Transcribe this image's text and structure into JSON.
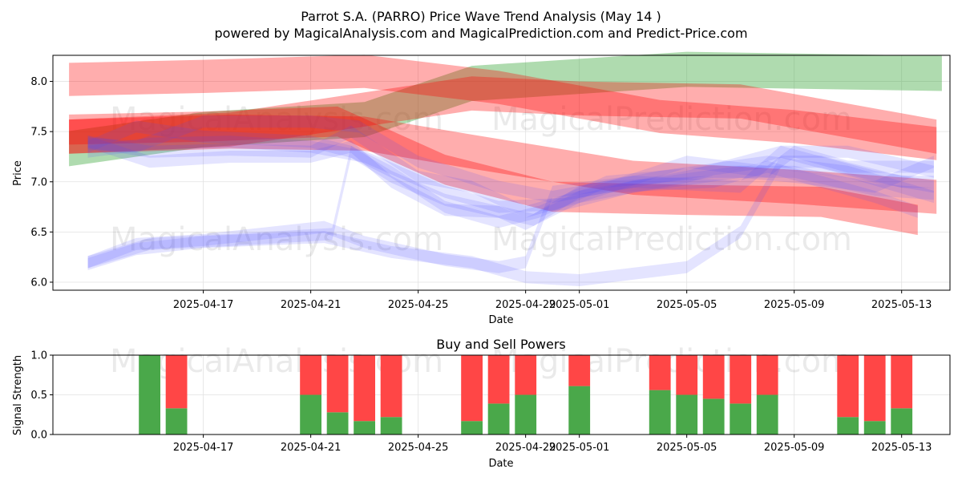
{
  "title": "Parrot S.A. (PARRO) Price Wave Trend Analysis (May 14 )",
  "subtitle": "powered by MagicalAnalysis.com and MagicalPrediction.com and Predict-Price.com",
  "watermarks": [
    "MagicalAnalysis.com",
    "MagicalPrediction.com"
  ],
  "chart_data": [
    {
      "type": "area",
      "title": "",
      "xlabel": "Date",
      "ylabel": "Price",
      "ylim": [
        5.92,
        8.26
      ],
      "yticks": [
        6.0,
        6.5,
        7.0,
        7.5,
        8.0
      ],
      "x_range_days": [
        -3.6,
        29.8
      ],
      "xticks": [
        {
          "day": 2,
          "label": "2025-04-17"
        },
        {
          "day": 6,
          "label": "2025-04-21"
        },
        {
          "day": 10,
          "label": "2025-04-25"
        },
        {
          "day": 14,
          "label": "2025-04-29"
        },
        {
          "day": 16,
          "label": "2025-05-01"
        },
        {
          "day": 20,
          "label": "2025-05-05"
        },
        {
          "day": 24,
          "label": "2025-05-09"
        },
        {
          "day": 28,
          "label": "2025-05-13"
        }
      ],
      "grid": true,
      "bands": [
        {
          "color": "#2ca02c",
          "opacity": 0.38,
          "width": 0.35,
          "points": [
            [
              -3,
              7.33
            ],
            [
              2,
              7.52
            ],
            [
              8,
              7.62
            ],
            [
              12,
              7.98
            ],
            [
              20,
              8.12
            ],
            [
              29.5,
              8.08
            ]
          ]
        },
        {
          "color": "#ff0000",
          "opacity": 0.32,
          "width": 0.33,
          "points": [
            [
              -3,
              8.02
            ],
            [
              2,
              8.05
            ],
            [
              8,
              8.1
            ],
            [
              13,
              7.94
            ],
            [
              19,
              7.65
            ],
            [
              24,
              7.55
            ],
            [
              29.3,
              7.38
            ]
          ]
        },
        {
          "color": "#ff0000",
          "opacity": 0.32,
          "width": 0.34,
          "points": [
            [
              -3,
              7.45
            ],
            [
              3,
              7.5
            ],
            [
              8,
              7.48
            ],
            [
              12,
              7.3
            ],
            [
              18,
              7.04
            ],
            [
              24,
              6.95
            ],
            [
              29.3,
              6.85
            ]
          ]
        },
        {
          "color": "#ff0000",
          "opacity": 0.32,
          "width": 0.3,
          "points": [
            [
              -3,
              7.52
            ],
            [
              2,
              7.55
            ],
            [
              7,
              7.6
            ],
            [
              11,
              7.12
            ],
            [
              15,
              6.85
            ],
            [
              20,
              6.82
            ],
            [
              25,
              6.8
            ],
            [
              28.6,
              6.62
            ]
          ]
        },
        {
          "color": "#ff0000",
          "opacity": 0.32,
          "width": 0.34,
          "points": [
            [
              -3,
              7.45
            ],
            [
              3,
              7.52
            ],
            [
              8,
              7.72
            ],
            [
              12,
              7.88
            ],
            [
              16,
              7.83
            ],
            [
              22,
              7.8
            ],
            [
              29.3,
              7.45
            ]
          ]
        },
        {
          "color": "#4b4bff",
          "opacity": 0.15,
          "width": 0.12,
          "points": [
            [
              -2.3,
              6.18
            ],
            [
              -0.5,
              6.33
            ],
            [
              2,
              6.4
            ],
            [
              6.5,
              6.45
            ],
            [
              9,
              6.3
            ],
            [
              12,
              6.2
            ],
            [
              14,
              6.05
            ],
            [
              16,
              6.02
            ],
            [
              20,
              6.15
            ],
            [
              22,
              6.5
            ],
            [
              23.5,
              7.2
            ],
            [
              25,
              7.2
            ],
            [
              28,
              7.0
            ],
            [
              29.2,
              7.0
            ]
          ]
        },
        {
          "color": "#4b4bff",
          "opacity": 0.15,
          "width": 0.12,
          "points": [
            [
              -2.3,
              6.2
            ],
            [
              -0.5,
              6.38
            ],
            [
              2,
              6.42
            ],
            [
              6.5,
              6.55
            ],
            [
              8,
              6.4
            ],
            [
              11,
              6.22
            ],
            [
              13,
              6.15
            ],
            [
              14,
              6.2
            ],
            [
              15,
              6.9
            ],
            [
              18,
              7.0
            ],
            [
              22,
              6.95
            ],
            [
              23.5,
              7.3
            ],
            [
              26,
              7.3
            ],
            [
              29.2,
              7.1
            ]
          ]
        },
        {
          "color": "#4b4bff",
          "opacity": 0.15,
          "width": 0.12,
          "points": [
            [
              -2.3,
              6.2
            ],
            [
              0,
              6.38
            ],
            [
              3,
              6.42
            ],
            [
              6.8,
              6.48
            ],
            [
              7.5,
              7.3
            ],
            [
              9,
              7.1
            ],
            [
              11,
              6.75
            ],
            [
              13,
              6.6
            ],
            [
              14.5,
              6.7
            ],
            [
              17,
              7.0
            ],
            [
              21,
              7.1
            ],
            [
              24,
              7.1
            ],
            [
              27,
              6.92
            ],
            [
              29.2,
              6.88
            ]
          ]
        },
        {
          "color": "#4b4bff",
          "opacity": 0.15,
          "width": 0.12,
          "points": [
            [
              -2.3,
              7.35
            ],
            [
              -0.5,
              7.55
            ],
            [
              2,
              7.45
            ],
            [
              6,
              7.4
            ],
            [
              7.5,
              7.3
            ],
            [
              9,
              7.05
            ],
            [
              11,
              6.82
            ],
            [
              13,
              6.7
            ],
            [
              14,
              6.58
            ],
            [
              16,
              6.85
            ],
            [
              20,
              7.2
            ],
            [
              23,
              7.1
            ],
            [
              24,
              7.3
            ],
            [
              26,
              7.15
            ],
            [
              29.2,
              7.15
            ]
          ]
        },
        {
          "color": "#4b4bff",
          "opacity": 0.15,
          "width": 0.12,
          "points": [
            [
              -2.3,
              7.4
            ],
            [
              0,
              7.3
            ],
            [
              3,
              7.32
            ],
            [
              6,
              7.3
            ],
            [
              7.5,
              7.5
            ],
            [
              10,
              7.05
            ],
            [
              12,
              6.95
            ],
            [
              14,
              6.7
            ],
            [
              16,
              6.85
            ],
            [
              20,
              7.05
            ],
            [
              23.5,
              7.3
            ],
            [
              27,
              7.05
            ],
            [
              29.2,
              6.95
            ]
          ]
        },
        {
          "color": "#4b4bff",
          "opacity": 0.15,
          "width": 0.12,
          "points": [
            [
              -2.3,
              7.4
            ],
            [
              0,
              7.2
            ],
            [
              3,
              7.25
            ],
            [
              6,
              7.25
            ],
            [
              7.5,
              7.35
            ],
            [
              9,
              7.0
            ],
            [
              11,
              6.72
            ],
            [
              13,
              6.7
            ],
            [
              14.3,
              6.62
            ],
            [
              16,
              6.9
            ],
            [
              19,
              7.05
            ],
            [
              23,
              7.2
            ],
            [
              26,
              7.1
            ],
            [
              29.2,
              6.85
            ]
          ]
        },
        {
          "color": "#4b4bff",
          "opacity": 0.15,
          "width": 0.12,
          "points": [
            [
              -2.3,
              7.38
            ],
            [
              -0.5,
              7.35
            ],
            [
              2,
              7.6
            ],
            [
              6,
              7.6
            ],
            [
              7.8,
              7.55
            ],
            [
              10,
              7.2
            ],
            [
              13,
              6.95
            ],
            [
              15,
              6.85
            ],
            [
              17,
              6.95
            ],
            [
              21,
              7.0
            ],
            [
              23,
              7.15
            ],
            [
              25,
              7.0
            ],
            [
              27,
              6.85
            ],
            [
              28.6,
              6.7
            ]
          ]
        },
        {
          "color": "#4b4bff",
          "opacity": 0.15,
          "width": 0.12,
          "points": [
            [
              -2.3,
              7.3
            ],
            [
              0,
              7.38
            ],
            [
              3,
              7.4
            ],
            [
              6,
              7.35
            ],
            [
              8,
              7.25
            ],
            [
              11,
              6.9
            ],
            [
              13,
              6.75
            ],
            [
              15.5,
              6.78
            ],
            [
              18,
              6.95
            ],
            [
              22,
              7.1
            ],
            [
              24,
              7.05
            ],
            [
              27,
              6.95
            ],
            [
              29.2,
              7.2
            ]
          ]
        }
      ]
    },
    {
      "type": "bar",
      "title": "Buy and Sell Powers",
      "xlabel": "Date",
      "ylabel": "Signal Strength",
      "ylim": [
        0,
        1
      ],
      "yticks": [
        0.0,
        0.5,
        1.0
      ],
      "x_range_days": [
        -3.6,
        29.8
      ],
      "xticks": [
        {
          "day": 2,
          "label": "2025-04-17"
        },
        {
          "day": 6,
          "label": "2025-04-21"
        },
        {
          "day": 10,
          "label": "2025-04-25"
        },
        {
          "day": 14,
          "label": "2025-04-29"
        },
        {
          "day": 16,
          "label": "2025-05-01"
        },
        {
          "day": 20,
          "label": "2025-05-05"
        },
        {
          "day": 24,
          "label": "2025-05-09"
        },
        {
          "day": 28,
          "label": "2025-05-13"
        }
      ],
      "buy_color": "#4aa84a",
      "sell_color": "#ff4646",
      "series": [
        {
          "name": "Buy",
          "values": [
            1.0,
            0.33,
            0.5,
            0.28,
            0.17,
            0.22,
            0.17,
            0.39,
            0.5,
            0.61,
            0.56,
            0.5,
            0.45,
            0.39,
            0.5,
            0.22,
            0.17,
            0.33
          ]
        },
        {
          "name": "Sell",
          "values": [
            0.0,
            0.67,
            0.5,
            0.72,
            0.83,
            0.78,
            0.83,
            0.61,
            0.5,
            0.39,
            0.44,
            0.5,
            0.55,
            0.61,
            0.5,
            0.78,
            0.83,
            0.67
          ]
        }
      ],
      "bar_days": [
        0,
        1,
        6,
        7,
        8,
        9,
        12,
        13,
        14,
        16,
        19,
        20,
        21,
        22,
        23,
        26,
        27,
        28
      ]
    }
  ]
}
